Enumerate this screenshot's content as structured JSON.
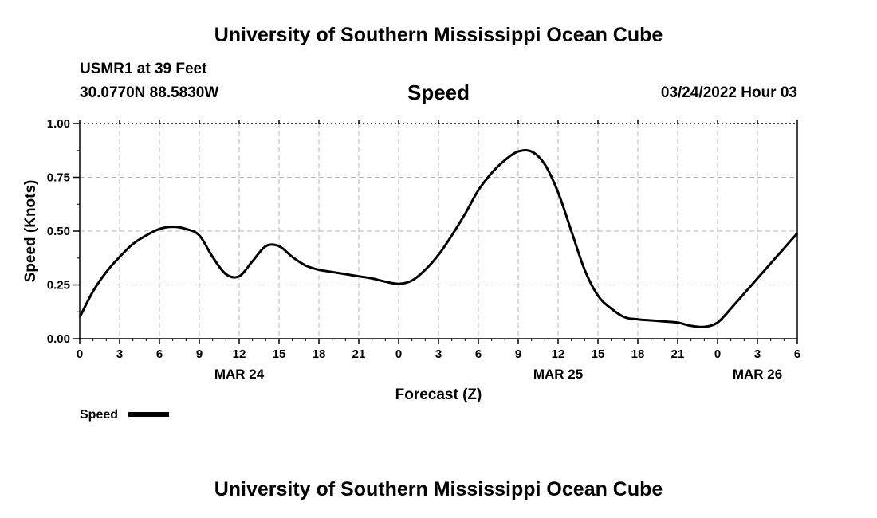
{
  "header": {
    "top_title": "University of Southern Mississippi Ocean Cube",
    "station": "USMR1 at 39 Feet",
    "coords": "30.0770N  88.5830W",
    "chart_title": "Speed",
    "run_time": "03/24/2022 Hour 03",
    "bottom_title": "University of Southern Mississippi Ocean Cube"
  },
  "chart_data": {
    "type": "line",
    "title": "Speed",
    "xlabel": "Forecast (Z)",
    "ylabel": "Speed (Knots)",
    "xlim": [
      0,
      54
    ],
    "ylim": [
      0,
      1
    ],
    "x_tick_values": [
      0,
      3,
      6,
      9,
      12,
      15,
      18,
      21,
      24,
      27,
      30,
      33,
      36,
      39,
      42,
      45,
      48,
      51,
      54
    ],
    "x_tick_labels": [
      "0",
      "3",
      "6",
      "9",
      "12",
      "15",
      "18",
      "21",
      "0",
      "3",
      "6",
      "9",
      "12",
      "15",
      "18",
      "21",
      "0",
      "3",
      "6"
    ],
    "y_tick_values": [
      0,
      0.25,
      0.5,
      0.75,
      1
    ],
    "y_tick_labels": [
      "0.00",
      "0.25",
      "0.50",
      "0.75",
      "1.00"
    ],
    "date_labels": [
      {
        "x": 12,
        "label": "MAR 24"
      },
      {
        "x": 36,
        "label": "MAR 25"
      },
      {
        "x": 51,
        "label": "MAR 26"
      }
    ],
    "grid": true,
    "legend": {
      "label": "Speed",
      "placement": "bottom-left",
      "color": "#000000"
    },
    "series": [
      {
        "name": "Speed",
        "x": [
          0,
          1,
          2,
          3,
          4,
          5,
          6,
          7,
          8,
          9,
          10,
          11,
          12,
          13,
          14,
          15,
          16,
          17,
          18,
          19,
          20,
          21,
          22,
          23,
          24,
          25,
          26,
          27,
          28,
          29,
          30,
          31,
          32,
          33,
          34,
          35,
          36,
          37,
          38,
          39,
          40,
          41,
          42,
          43,
          44,
          45,
          46,
          47,
          48,
          49,
          50,
          51,
          52,
          53,
          54
        ],
        "values": [
          0.1,
          0.22,
          0.31,
          0.38,
          0.44,
          0.48,
          0.51,
          0.52,
          0.51,
          0.48,
          0.38,
          0.3,
          0.29,
          0.36,
          0.43,
          0.43,
          0.38,
          0.34,
          0.32,
          0.31,
          0.3,
          0.29,
          0.28,
          0.265,
          0.255,
          0.27,
          0.32,
          0.39,
          0.48,
          0.58,
          0.69,
          0.77,
          0.83,
          0.87,
          0.87,
          0.81,
          0.68,
          0.5,
          0.32,
          0.2,
          0.14,
          0.1,
          0.09,
          0.085,
          0.08,
          0.075,
          0.06,
          0.055,
          0.075,
          0.14,
          0.21,
          0.28,
          0.35,
          0.42,
          0.49
        ]
      }
    ]
  }
}
